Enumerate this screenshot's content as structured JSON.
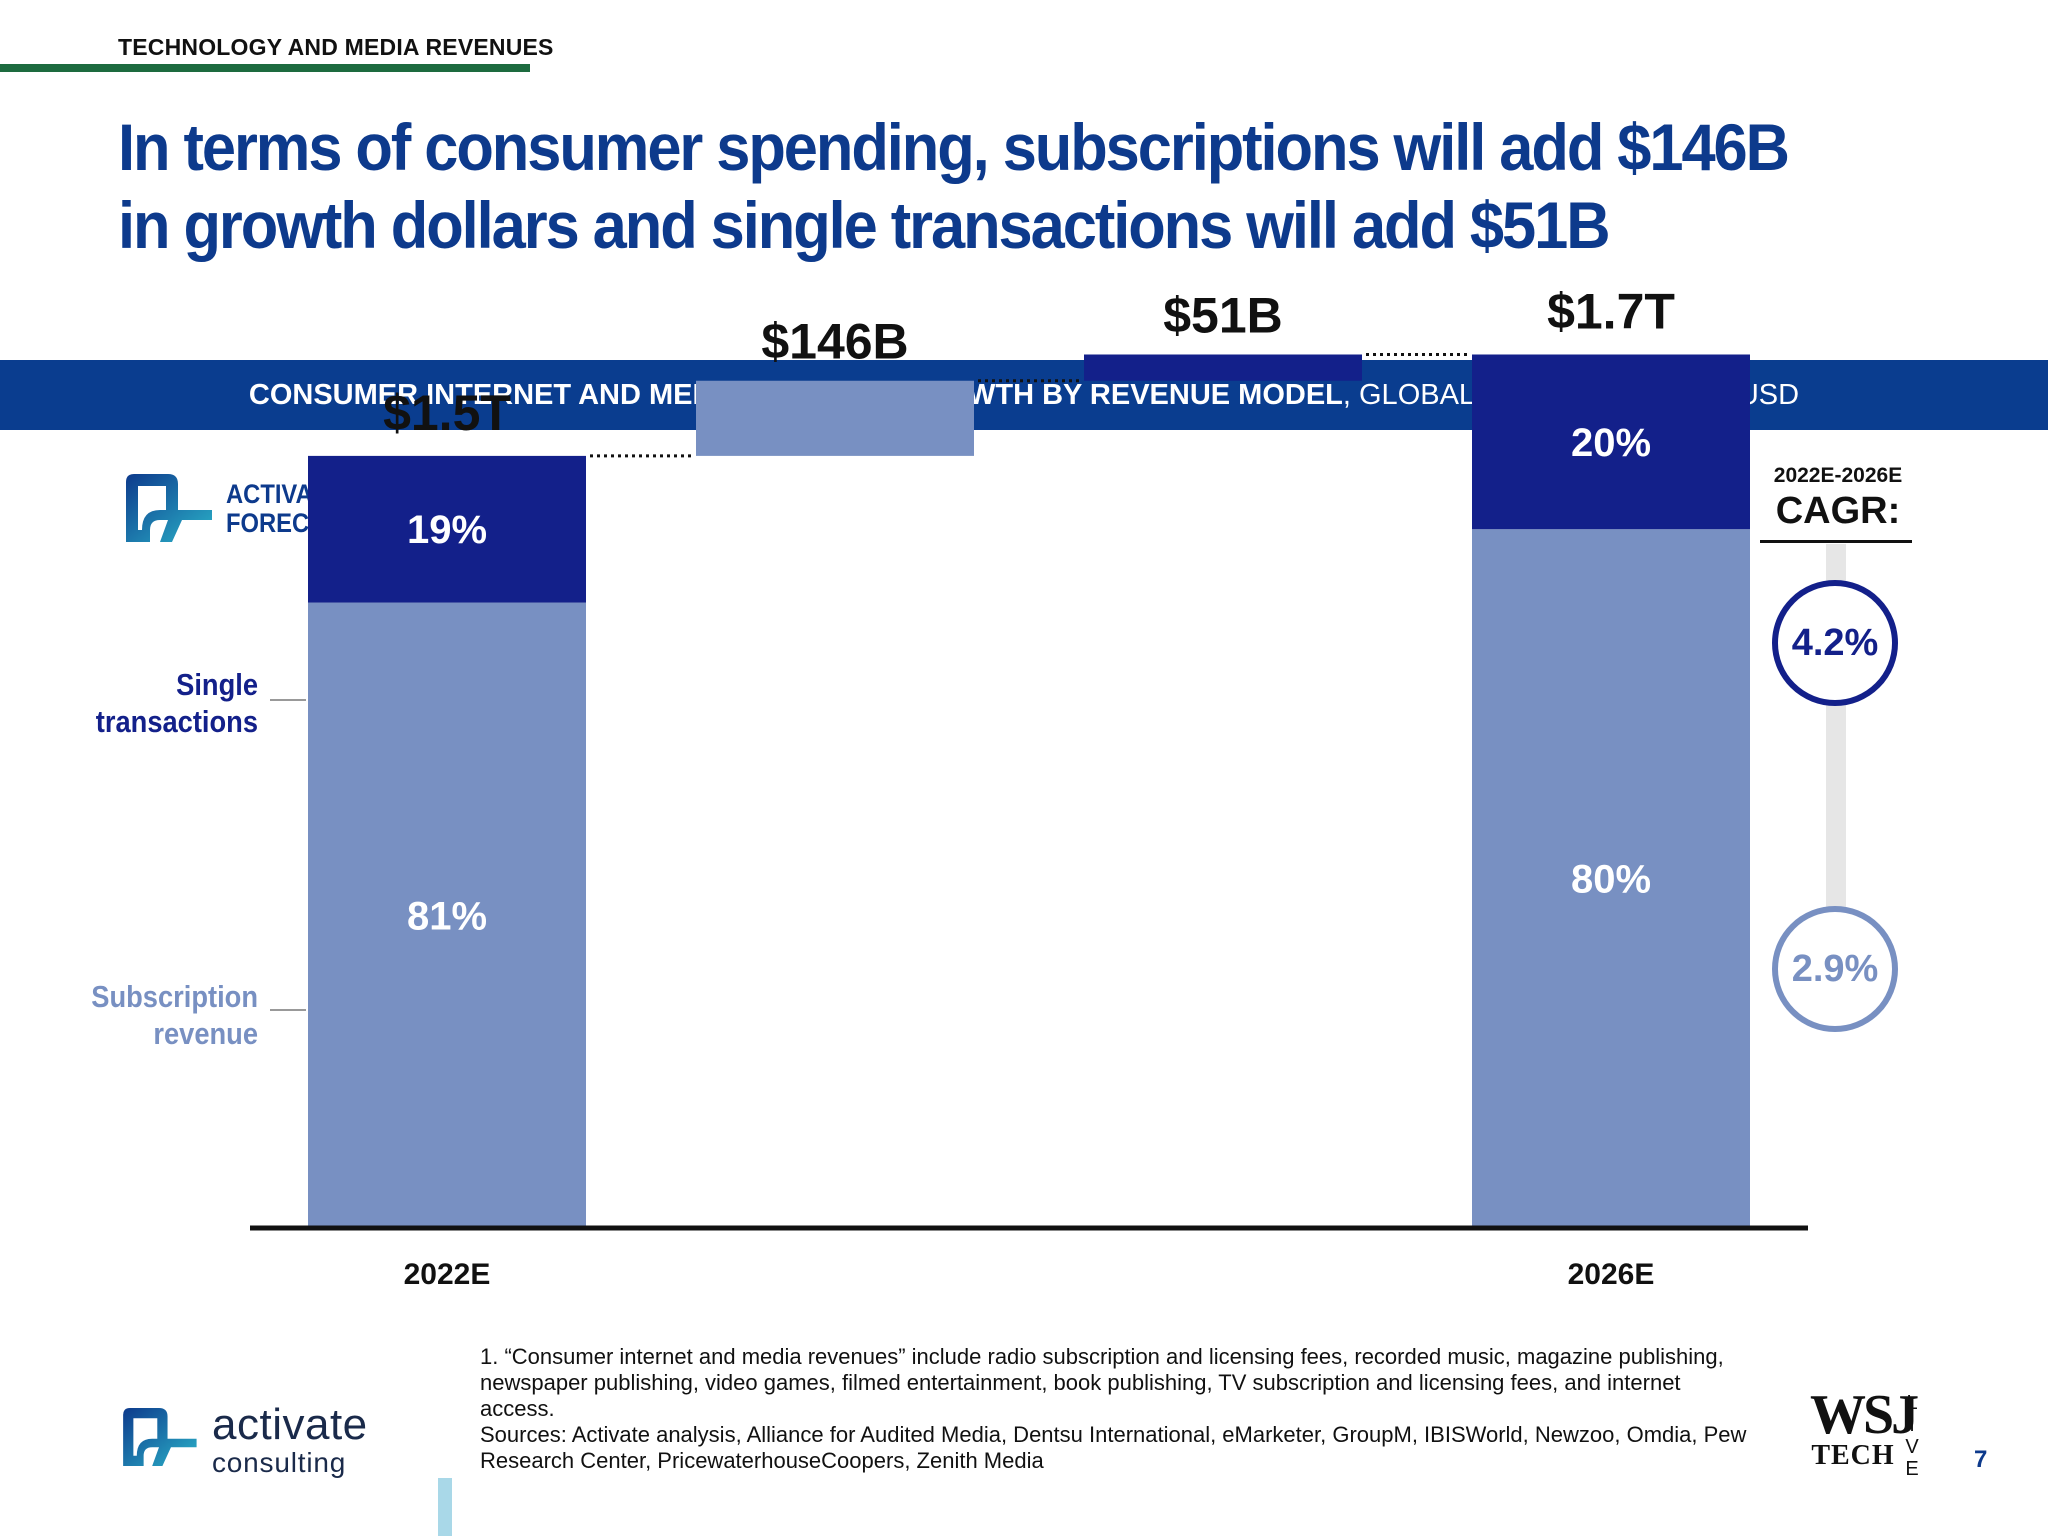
{
  "section_label": "TECHNOLOGY AND MEDIA REVENUES",
  "headline": "In terms of consumer spending, subscriptions will add $146B in growth dollars and single transactions will add $51B",
  "banner": {
    "strong": "CONSUMER INTERNET AND MEDIA REVENUE",
    "sup": "1",
    "strong_tail": " GROWTH BY REVENUE MODEL",
    "rest": ", GLOBAL, 2022E VS. 2026E, USD"
  },
  "forecast_logo": {
    "line1": "ACTIVATE",
    "line2": "FORECAST"
  },
  "segment_labels": {
    "single": [
      "Single",
      "transactions"
    ],
    "subscription": [
      "Subscription",
      "revenue"
    ]
  },
  "cagr": {
    "range": "2022E-2026E",
    "label": "CAGR:",
    "single": "4.2%",
    "subscription": "2.9%"
  },
  "colors": {
    "single": "#13208a",
    "subscription": "#7890c2",
    "axis": "#111111"
  },
  "chart_data": {
    "type": "bar",
    "subtype": "waterfall-stacked",
    "unit": "USD billions",
    "ylim": [
      0,
      1900
    ],
    "grid": false,
    "bars": [
      {
        "category": "2022E",
        "kind": "total",
        "total": 1500,
        "label": "$1.5T",
        "segments": [
          {
            "name": "Subscription revenue",
            "share": 0.81,
            "label": "81%"
          },
          {
            "name": "Single transactions",
            "share": 0.19,
            "label": "19%"
          }
        ]
      },
      {
        "category": "",
        "kind": "delta",
        "series": "Subscription revenue",
        "value": 146,
        "label": "$146B"
      },
      {
        "category": "",
        "kind": "delta",
        "series": "Single transactions",
        "value": 51,
        "label": "$51B"
      },
      {
        "category": "2026E",
        "kind": "total",
        "total": 1697,
        "label": "$1.7T",
        "segments": [
          {
            "name": "Subscription revenue",
            "share": 0.8,
            "label": "80%"
          },
          {
            "name": "Single transactions",
            "share": 0.2,
            "label": "20%"
          }
        ]
      }
    ]
  },
  "footnote": {
    "note": "1. “Consumer internet and media revenues” include radio subscription and licensing fees, recorded music, magazine publishing, newspaper publishing, video games, filmed entertainment, book publishing, TV subscription and licensing fees, and internet access.",
    "sources": "Sources: Activate analysis, Alliance for Audited Media, Dentsu International, eMarketer, GroupM, IBISWorld, Newzoo, Omdia, Pew Research Center, PricewaterhouseCoopers, Zenith Media"
  },
  "brand": {
    "name": "activate",
    "sub": "consulting"
  },
  "wsj": {
    "top": "WSJ",
    "bottom": "TECH",
    "side": "LIVE"
  },
  "page_number": "7"
}
